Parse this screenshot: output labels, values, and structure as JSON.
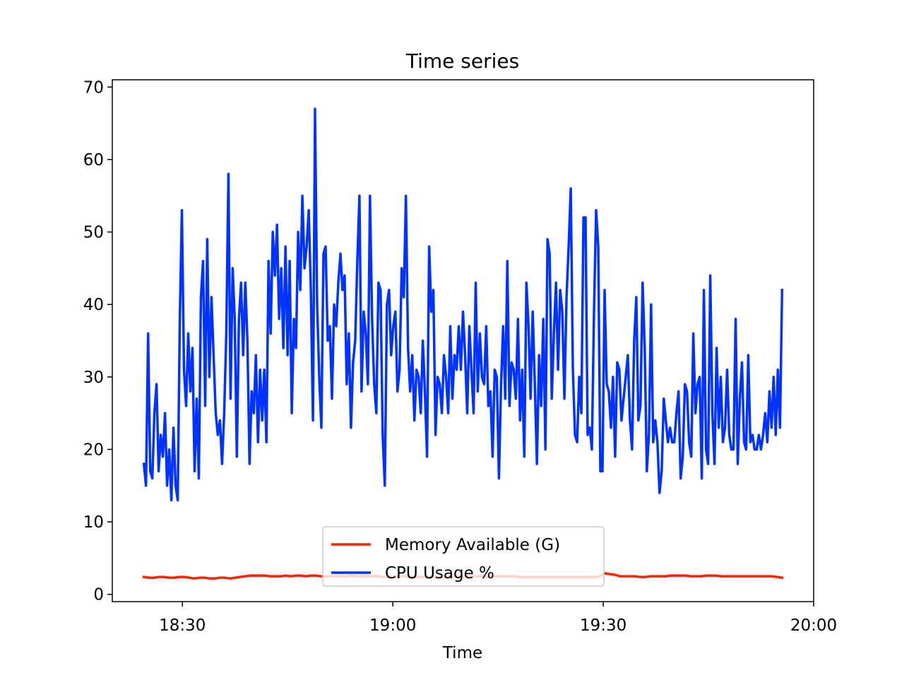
{
  "chart_data": {
    "type": "line",
    "title": "Time series",
    "xlabel": "Time",
    "ylabel": "",
    "xlim": [
      "18:20",
      "20:00"
    ],
    "ylim": [
      -1,
      71
    ],
    "xticks": [
      "18:30",
      "19:00",
      "19:30",
      "20:00"
    ],
    "yticks": [
      0,
      10,
      20,
      30,
      40,
      50,
      60,
      70
    ],
    "grid": false,
    "legend_position": "lower center",
    "series": [
      {
        "name": "Memory Available (G)",
        "color": "#ff2200",
        "x_start": "18:24:30",
        "x_end": "19:55:30",
        "values": [
          2.4,
          2.3,
          2.3,
          2.4,
          2.4,
          2.3,
          2.3,
          2.4,
          2.4,
          2.3,
          2.2,
          2.3,
          2.3,
          2.2,
          2.2,
          2.3,
          2.3,
          2.2,
          2.3,
          2.4,
          2.5,
          2.6,
          2.6,
          2.6,
          2.6,
          2.5,
          2.5,
          2.5,
          2.6,
          2.5,
          2.6,
          2.6,
          2.5,
          2.6,
          2.6,
          2.5,
          2.5,
          2.5,
          2.5,
          2.5,
          2.5,
          2.6,
          2.5,
          2.5,
          2.5,
          2.5,
          2.5,
          2.4,
          2.4,
          2.4,
          2.5,
          2.5,
          2.5,
          2.4,
          2.4,
          2.4,
          2.4,
          2.4,
          2.4,
          2.4,
          2.4,
          2.5,
          2.5,
          2.5,
          2.5,
          2.5,
          2.5,
          2.5,
          2.5,
          2.5,
          2.5,
          2.5,
          2.5,
          2.5,
          2.4,
          2.4,
          2.4,
          2.4,
          2.4,
          2.4,
          2.4,
          2.4,
          2.4,
          2.4,
          2.4,
          2.4,
          2.4,
          2.4,
          2.4,
          2.4,
          2.5,
          2.9,
          2.8,
          2.7,
          2.5,
          2.5,
          2.5,
          2.5,
          2.4,
          2.4,
          2.5,
          2.5,
          2.5,
          2.5,
          2.6,
          2.6,
          2.6,
          2.6,
          2.5,
          2.5,
          2.5,
          2.6,
          2.6,
          2.6,
          2.5,
          2.5,
          2.5,
          2.5,
          2.5,
          2.5,
          2.5,
          2.5,
          2.5,
          2.5,
          2.5,
          2.4,
          2.3
        ]
      },
      {
        "name": "CPU Usage %",
        "color": "#0033ff",
        "x_start": "18:24:30",
        "x_end": "19:55:30",
        "values": [
          18,
          15,
          36,
          17,
          16,
          25,
          29,
          17,
          22,
          19,
          25,
          15,
          20,
          13,
          23,
          15,
          13,
          38,
          53,
          31,
          26,
          36,
          28,
          34,
          17,
          27,
          16,
          41,
          46,
          26,
          49,
          30,
          41,
          33,
          25,
          22,
          24,
          18,
          25,
          36,
          58,
          27,
          45,
          38,
          19,
          38,
          43,
          33,
          43,
          35,
          18,
          28,
          25,
          33,
          21,
          31,
          24,
          31,
          21,
          46,
          36,
          50,
          44,
          51,
          38,
          45,
          34,
          48,
          33,
          46,
          25,
          38,
          34,
          50,
          42,
          55,
          45,
          48,
          53,
          42,
          24,
          67,
          40,
          30,
          23,
          47,
          48,
          35,
          37,
          27,
          40,
          37,
          43,
          47,
          42,
          44,
          29,
          36,
          23,
          32,
          35,
          46,
          55,
          28,
          39,
          36,
          29,
          55,
          38,
          29,
          25,
          43,
          42,
          22,
          15,
          40,
          42,
          33,
          37,
          39,
          28,
          31,
          45,
          41,
          55,
          34,
          28,
          33,
          24,
          31,
          30,
          25,
          35,
          28,
          19,
          48,
          39,
          42,
          22,
          30,
          29,
          25,
          33,
          30,
          25,
          37,
          27,
          33,
          31,
          37,
          31,
          39,
          33,
          25,
          37,
          31,
          25,
          43,
          28,
          36,
          30,
          29,
          37,
          26,
          28,
          19,
          31,
          30,
          16,
          29,
          37,
          27,
          46,
          26,
          32,
          31,
          27,
          38,
          24,
          31,
          19,
          43,
          37,
          27,
          39,
          29,
          18,
          33,
          26,
          38,
          20,
          49,
          47,
          27,
          36,
          43,
          31,
          42,
          39,
          27,
          41,
          48,
          56,
          31,
          22,
          21,
          30,
          25,
          52,
          52,
          22,
          23,
          20,
          39,
          53,
          48,
          17,
          17,
          42,
          29,
          28,
          23,
          30,
          19,
          32,
          31,
          24,
          27,
          30,
          33,
          24,
          20,
          35,
          41,
          24,
          26,
          43,
          34,
          17,
          22,
          40,
          21,
          24,
          21,
          14,
          17,
          27,
          24,
          21,
          23,
          21,
          21,
          25,
          28,
          16,
          19,
          29,
          28,
          21,
          19,
          36,
          25,
          29,
          30,
          16,
          42,
          20,
          18,
          44,
          25,
          18,
          34,
          23,
          30,
          21,
          23,
          31,
          22,
          20,
          20,
          38,
          18,
          27,
          32,
          21,
          20,
          33,
          21,
          22,
          20,
          20,
          22,
          20,
          22,
          25,
          21,
          28,
          23,
          30,
          22,
          31,
          23,
          42
        ]
      }
    ]
  }
}
